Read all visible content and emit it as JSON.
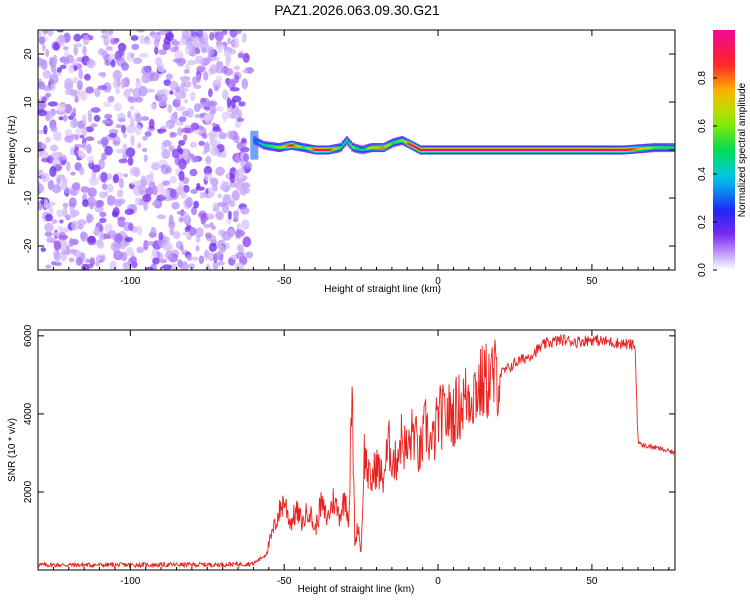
{
  "title": "PAZ1.2026.063.09.30.G21",
  "colors": {
    "line": "#e8231f",
    "axis": "#000000",
    "scatter": "#9a5cf0",
    "ridge_low": "#1a2cf5",
    "ridge_mid": "#00e08a",
    "ridge_high": "#ff1f3a"
  },
  "chart_data": [
    {
      "type": "heatmap",
      "title": "PAZ1.2026.063.09.30.G21",
      "xlabel": "Height of straight line (km)",
      "ylabel": "Frequency (Hz)",
      "xlim": [
        -130,
        77
      ],
      "ylim": [
        -25,
        25
      ],
      "xticks": [
        -100,
        -50,
        0,
        50
      ],
      "yticks": [
        -20,
        -10,
        0,
        10,
        20
      ],
      "colorbar": {
        "label": "Normalized spectral amplitude",
        "range": [
          0,
          1
        ],
        "ticks": [
          0.0,
          0.2,
          0.4,
          0.6,
          0.8
        ],
        "tick_labels": [
          "0.0",
          "0.2",
          "0.4",
          "0.6",
          "0.8"
        ]
      },
      "noise_region_x": [
        -130,
        -60
      ],
      "ridge": {
        "x": [
          -60,
          -57,
          -52,
          -48,
          -44,
          -40,
          -36,
          -32,
          -30,
          -28,
          -25,
          -22,
          -18,
          -15,
          -12,
          -9,
          -6,
          -3,
          0,
          10,
          20,
          30,
          40,
          50,
          60,
          70,
          77
        ],
        "frequency": [
          2,
          1,
          0.5,
          1,
          0.5,
          0,
          0,
          0.5,
          2,
          0.5,
          0,
          0.5,
          0.5,
          1.5,
          2,
          1,
          0,
          0,
          0,
          0,
          0,
          0,
          0,
          0,
          0,
          0.5,
          0.5
        ],
        "amplitude": [
          0.3,
          0.45,
          0.6,
          0.9,
          0.5,
          0.9,
          0.9,
          0.5,
          0.45,
          0.6,
          0.4,
          0.7,
          0.8,
          0.5,
          0.6,
          0.95,
          0.95,
          1.0,
          1.0,
          1.0,
          1.0,
          1.0,
          1.0,
          1.0,
          0.95,
          0.55,
          0.5
        ]
      }
    },
    {
      "type": "line",
      "title": "",
      "xlabel": "Height of straight line (km)",
      "ylabel": "SNR (10 * v/v)",
      "xlim": [
        -130,
        77
      ],
      "ylim": [
        0,
        6150
      ],
      "xticks": [
        -100,
        -50,
        0,
        50
      ],
      "yticks": [
        2000,
        4000,
        6000
      ],
      "series": [
        {
          "name": "SNR",
          "x": [
            -130,
            -100,
            -70,
            -60,
            -56,
            -54,
            -52,
            -50,
            -48,
            -46,
            -44,
            -42,
            -40,
            -38,
            -36,
            -34,
            -32,
            -30,
            -29,
            -28,
            -27,
            -26,
            -25,
            -24,
            -22,
            -20,
            -18,
            -16,
            -14,
            -12,
            -10,
            -8,
            -6,
            -4,
            -2,
            0,
            5,
            10,
            15,
            20,
            25,
            30,
            35,
            40,
            45,
            50,
            55,
            60,
            64,
            65,
            66,
            70,
            77
          ],
          "y": [
            130,
            130,
            140,
            160,
            400,
            900,
            1400,
            1800,
            1200,
            1500,
            1200,
            1600,
            1000,
            1700,
            1300,
            1800,
            1400,
            1900,
            1200,
            4600,
            600,
            1200,
            400,
            3000,
            2200,
            2700,
            2300,
            3200,
            2700,
            3400,
            3000,
            3600,
            2900,
            3700,
            3100,
            3900,
            4000,
            4500,
            4800,
            5000,
            5300,
            5500,
            5800,
            5900,
            5850,
            5900,
            5850,
            5800,
            5750,
            3300,
            3200,
            3150,
            3000
          ]
        }
      ]
    }
  ]
}
